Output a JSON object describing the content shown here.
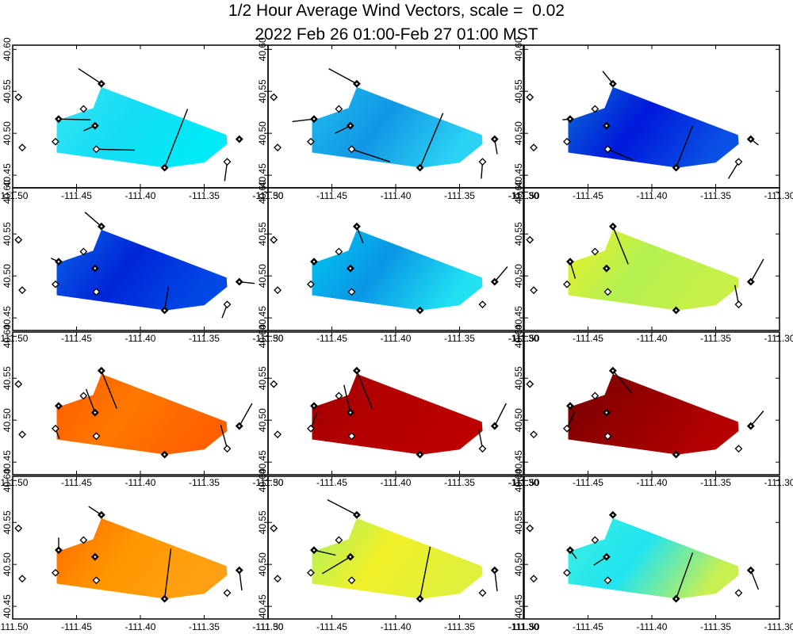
{
  "title_line1": "1/2 Hour Average Wind Vectors, scale =  0.02",
  "title_line2": "2022 Feb 26 01:00-Feb 27 01:00 MST",
  "chart_data": {
    "type": "vector-map-grid",
    "rows": 4,
    "cols": 3,
    "scale": 0.02,
    "xlim": [
      -111.5,
      -111.3
    ],
    "ylim": [
      40.435,
      40.605
    ],
    "x_tick_labels": [
      "-111.50",
      "-111.45",
      "-111.40",
      "-111.35",
      "-111.30"
    ],
    "x_tick_values": [
      -111.5,
      -111.45,
      -111.4,
      -111.35,
      -111.3
    ],
    "y_tick_labels": [
      "40.45",
      "40.50",
      "40.55",
      "40.60"
    ],
    "y_tick_values": [
      40.45,
      40.5,
      40.55,
      40.6
    ],
    "region_polygon": [
      [
        -111.437,
        40.53
      ],
      [
        -111.4305,
        40.555
      ],
      [
        -111.3325,
        40.498
      ],
      [
        -111.332,
        40.487
      ],
      [
        -111.35,
        40.465
      ],
      [
        -111.38,
        40.459
      ],
      [
        -111.4655,
        40.477
      ],
      [
        -111.4655,
        40.515
      ]
    ],
    "stations": [
      {
        "id": "s1",
        "lon": -111.4305,
        "lat": 40.559,
        "filled": true
      },
      {
        "id": "s2",
        "lon": -111.4445,
        "lat": 40.529,
        "filled": false
      },
      {
        "id": "s3",
        "lon": -111.464,
        "lat": 40.517,
        "filled": true
      },
      {
        "id": "s4",
        "lon": -111.4355,
        "lat": 40.509,
        "filled": true
      },
      {
        "id": "s5",
        "lon": -111.4665,
        "lat": 40.49,
        "filled": false
      },
      {
        "id": "s6",
        "lon": -111.4345,
        "lat": 40.481,
        "filled": false
      },
      {
        "id": "s7",
        "lon": -111.381,
        "lat": 40.459,
        "filled": true
      },
      {
        "id": "s8",
        "lon": -111.3225,
        "lat": 40.493,
        "filled": true
      },
      {
        "id": "s9",
        "lon": -111.332,
        "lat": 40.466,
        "filled": false
      },
      {
        "id": "s10",
        "lon": -111.4955,
        "lat": 40.543,
        "filled": false
      },
      {
        "id": "s11",
        "lon": -111.4925,
        "lat": 40.483,
        "filled": false
      }
    ],
    "panels": [
      {
        "colors": [
          "#37e6f0",
          "#14dcf5",
          "#00ebf7"
        ],
        "vectors": {
          "s1": [
            -0.018,
            0.018
          ],
          "s3": [
            0.025,
            -0.001
          ],
          "s4": [
            -0.009,
            -0.006
          ],
          "s6": [
            0.03,
            -0.001
          ],
          "s7": [
            0.018,
            0.07
          ],
          "s9": [
            -0.002,
            -0.023
          ]
        }
      },
      {
        "colors": [
          "#1ebeee",
          "#1296e6",
          "#2ad2f4"
        ],
        "vectors": {
          "s1": [
            -0.022,
            0.018
          ],
          "s3": [
            -0.017,
            -0.003
          ],
          "s4": [
            -0.012,
            -0.009
          ],
          "s6": [
            0.03,
            -0.015
          ],
          "s7": [
            0.018,
            0.065
          ],
          "s8": [
            0.002,
            -0.018
          ],
          "s9": [
            -0.001,
            -0.02
          ]
        }
      },
      {
        "colors": [
          "#0a6ed6",
          "#0018dc",
          "#0a50e4"
        ],
        "vectors": {
          "s1": [
            -0.008,
            0.015
          ],
          "s3": [
            -0.006,
            -0.001
          ],
          "s6": [
            0.02,
            -0.013
          ],
          "s7": [
            0.013,
            0.05
          ],
          "s8": [
            0.006,
            -0.007
          ],
          "s9": [
            -0.008,
            -0.02
          ]
        }
      },
      {
        "colors": [
          "#0a64e6",
          "#0026d8",
          "#0048e6"
        ],
        "vectors": {
          "s1": [
            -0.013,
            0.017
          ],
          "s3": [
            -0.006,
            0.004
          ],
          "s7": [
            0.003,
            0.028
          ],
          "s8": [
            0.012,
            -0.002
          ],
          "s9": [
            -0.004,
            -0.016
          ]
        }
      },
      {
        "colors": [
          "#00c8f0",
          "#0a96e6",
          "#20e0f2"
        ],
        "vectors": {
          "s1": [
            0.005,
            -0.02
          ],
          "s8": [
            0.01,
            0.018
          ],
          "s9": [
            0.0,
            0.0
          ]
        }
      },
      {
        "colors": [
          "#ecf028",
          "#b4f050",
          "#c8f048"
        ],
        "vectors": {
          "s1": [
            0.012,
            -0.045
          ],
          "s3": [
            0.004,
            -0.02
          ],
          "s8": [
            0.01,
            0.027
          ],
          "s9": [
            -0.003,
            0.023
          ]
        }
      },
      {
        "colors": [
          "#ff5a00",
          "#ff7800",
          "#ff6000"
        ],
        "vectors": {
          "s1": [
            0.012,
            -0.045
          ],
          "s4": [
            -0.007,
            0.028
          ],
          "s5": [
            0.003,
            -0.012
          ],
          "s8": [
            0.01,
            0.027
          ],
          "s9": [
            -0.005,
            0.028
          ]
        }
      },
      {
        "colors": [
          "#a00000",
          "#b40000",
          "#bc0000"
        ],
        "vectors": {
          "s1": [
            0.012,
            -0.045
          ],
          "s4": [
            -0.005,
            0.033
          ],
          "s5": [
            0.005,
            0.02
          ],
          "s8": [
            0.009,
            0.027
          ],
          "s9": [
            -0.003,
            0.023
          ]
        }
      },
      {
        "colors": [
          "#780000",
          "#960000",
          "#b40000"
        ],
        "vectors": {
          "s1": [
            0.015,
            -0.027
          ],
          "s5": [
            0.006,
            0.02
          ],
          "s8": [
            0.01,
            0.018
          ]
        }
      },
      {
        "colors": [
          "#ff6a00",
          "#ff9800",
          "#ffa014"
        ],
        "vectors": {
          "s1": [
            -0.01,
            0.01
          ],
          "s3": [
            0.0,
            0.015
          ],
          "s6": [
            0.0,
            0.0
          ],
          "s7": [
            0.005,
            0.06
          ],
          "s8": [
            0.002,
            -0.024
          ]
        }
      },
      {
        "colors": [
          "#aaf064",
          "#f0f028",
          "#e0f03c"
        ],
        "vectors": {
          "s1": [
            -0.023,
            0.018
          ],
          "s3": [
            0.017,
            -0.006
          ],
          "s4": [
            -0.022,
            -0.02
          ],
          "s7": [
            0.008,
            0.062
          ],
          "s8": [
            0.002,
            -0.025
          ]
        }
      },
      {
        "colors": [
          "#3cf0e0",
          "#20e4f0",
          "#c8f050"
        ],
        "vectors": {
          "s3": [
            0.005,
            -0.01
          ],
          "s4": [
            -0.01,
            -0.01
          ],
          "s7": [
            0.013,
            0.055
          ],
          "s8": [
            0.006,
            -0.023
          ]
        }
      }
    ]
  }
}
